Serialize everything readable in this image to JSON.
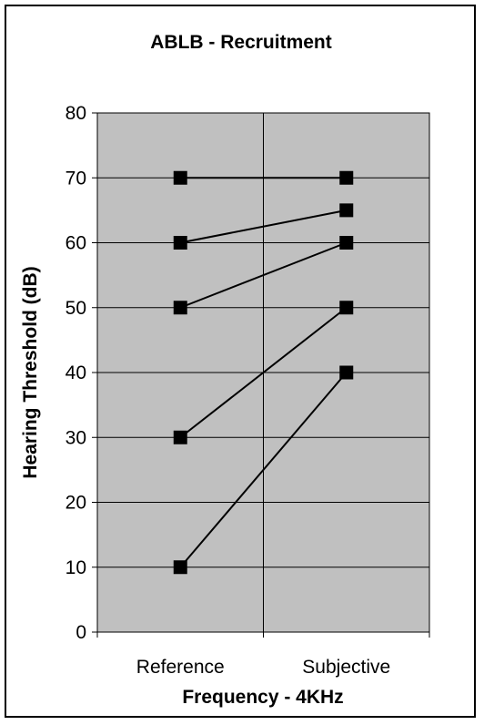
{
  "chart_data": {
    "type": "line",
    "title": "ABLB - Recruitment",
    "xlabel": "Frequency - 4KHz",
    "ylabel": "Hearing Threshold (dB)",
    "categories": [
      "Reference",
      "Subjective"
    ],
    "ylim": [
      0,
      80
    ],
    "yticks": [
      0,
      10,
      20,
      30,
      40,
      50,
      60,
      70,
      80
    ],
    "grid": true,
    "legend": "none",
    "colors": {
      "plot_bg": "#c0c0c0",
      "line": "#000000",
      "marker": "#000000",
      "grid": "#000000"
    },
    "series": [
      {
        "values": [
          70,
          70
        ]
      },
      {
        "values": [
          60,
          65
        ]
      },
      {
        "values": [
          50,
          60
        ]
      },
      {
        "values": [
          30,
          50
        ]
      },
      {
        "values": [
          10,
          40
        ]
      }
    ]
  }
}
